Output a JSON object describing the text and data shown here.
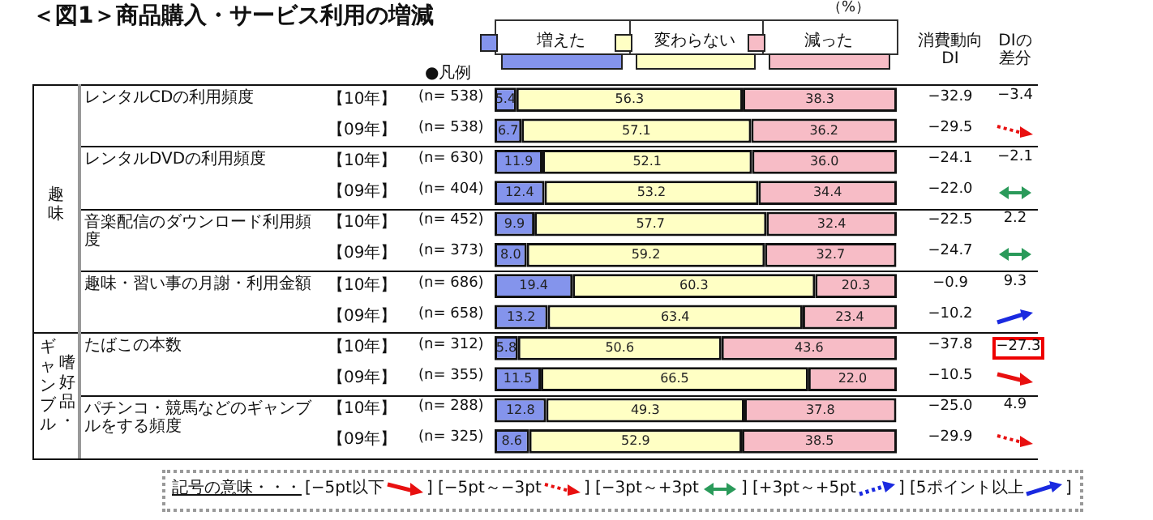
{
  "chart_data": {
    "type": "bar",
    "orientation": "horizontal",
    "stacked": true,
    "title": "＜図1＞商品購入・サービス利用の増減",
    "categories": [
      "【10年】",
      "【09年】",
      "【10年】",
      "【09年】",
      "【10年】",
      "【09年】",
      "【10年】",
      "【09年】",
      "【10年】",
      "【09年】",
      "【10年】",
      "【09年】"
    ],
    "series": [
      {
        "name": "増えた",
        "color": "#8494ec",
        "values": [
          5.4,
          6.7,
          11.9,
          12.4,
          9.9,
          8.0,
          19.4,
          13.2,
          5.8,
          11.5,
          12.8,
          8.6
        ],
        "value_labels": [
          "5.4",
          "6.7",
          "11.9",
          "12.4",
          "9.9",
          "8.0",
          "19.4",
          "13.2",
          "5.8",
          "11.5",
          "12.8",
          "8.6"
        ]
      },
      {
        "name": "変わらない",
        "color": "#ffffc4",
        "values": [
          56.3,
          57.1,
          52.1,
          53.2,
          57.7,
          59.2,
          60.3,
          63.4,
          50.6,
          66.5,
          49.3,
          52.9
        ],
        "value_labels": [
          "56.3",
          "57.1",
          "52.1",
          "53.2",
          "57.7",
          "59.2",
          "60.3",
          "63.4",
          "50.6",
          "66.5",
          "49.3",
          "52.9"
        ]
      },
      {
        "name": "減った",
        "color": "#f7bcc6",
        "values": [
          38.3,
          36.2,
          36.0,
          34.4,
          32.4,
          32.7,
          20.3,
          23.4,
          43.6,
          22.0,
          37.8,
          38.5
        ],
        "value_labels": [
          "38.3",
          "36.2",
          "36.0",
          "34.4",
          "32.4",
          "32.7",
          "20.3",
          "23.4",
          "43.6",
          "22.0",
          "37.8",
          "38.5"
        ]
      }
    ],
    "xlim": [
      0,
      100
    ],
    "tick_labels": false,
    "legend": "top",
    "annotations": [
      "（%）",
      "●凡例",
      "消費動向DI",
      "DIの差分",
      "趣味",
      "嗜好品・",
      "ギャンブル",
      "レンタルCDの利用頻度",
      "(n= 538)",
      "−32.9",
      "−3.4",
      "(n= 538)",
      "−29.5",
      "レンタルDVDの利用頻度",
      "(n= 630)",
      "−24.1",
      "−2.1",
      "(n= 404)",
      "−22.0",
      "音楽配信のダウンロード利用頻度",
      "(n= 452)",
      "−22.5",
      "2.2",
      "(n= 373)",
      "−24.7",
      "趣味・習い事の月謝・利用金額",
      "(n= 686)",
      "−0.9",
      "9.3",
      "(n= 658)",
      "−10.2",
      "たばこの本数",
      "(n= 312)",
      "−37.8",
      "−27.3",
      "(n= 355)",
      "−10.5",
      "パチンコ・競馬などのギャンブルをする頻度",
      "(n= 288)",
      "−25.0",
      "4.9",
      "(n= 325)",
      "−29.9",
      "記号の意味・・・",
      "[−5pt以下",
      "[−5pt～−3pt",
      "[−3pt～+3pt",
      "[+3pt～+5pt",
      "[5ポイント以上",
      "]"
    ]
  }
}
